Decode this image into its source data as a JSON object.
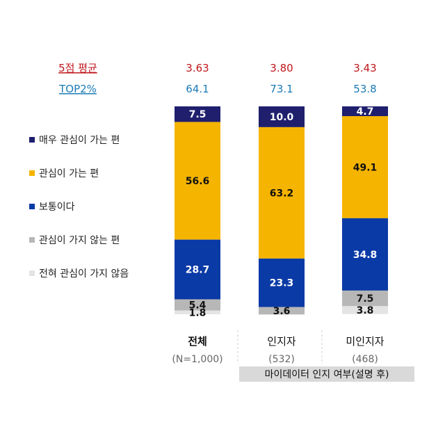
{
  "stats": {
    "avg_label": "5점 평균",
    "top2_label": "TOP2%",
    "avg_values": [
      "3.63",
      "3.80",
      "3.43"
    ],
    "top2_values": [
      "64.1",
      "73.1",
      "53.8"
    ]
  },
  "chart_data": {
    "type": "bar",
    "stacked": true,
    "ylim": [
      0,
      100
    ],
    "grid": false,
    "legend_position": "left",
    "categories": [
      "전체",
      "인지자",
      "미인지자"
    ],
    "category_counts": [
      "(N=1,000)",
      "(532)",
      "(468)"
    ],
    "group_label": "마이데이터 인지 여부(설명 후)",
    "series": [
      {
        "name": "매우 관심이 가는 편",
        "color": "#1f1f6e",
        "label_color": "#ffffff",
        "values": [
          7.5,
          10.0,
          4.7
        ],
        "labels": [
          "7.5",
          "10.0",
          "4.7"
        ]
      },
      {
        "name": "관심이 가는 편",
        "color": "#f5b400",
        "label_color": "#111111",
        "values": [
          56.6,
          63.2,
          49.1
        ],
        "labels": [
          "56.6",
          "63.2",
          "49.1"
        ]
      },
      {
        "name": "보통이다",
        "color": "#0a3aa6",
        "label_color": "#ffffff",
        "values": [
          28.7,
          23.3,
          34.8
        ],
        "labels": [
          "28.7",
          "23.3",
          "34.8"
        ]
      },
      {
        "name": "관심이 가지 않는 편",
        "color": "#b7b7b7",
        "label_color": "#111111",
        "values": [
          5.4,
          3.6,
          7.5
        ],
        "labels": [
          "5.4",
          "3.6",
          "7.5"
        ]
      },
      {
        "name": "전혀 관심이 가지 않음",
        "color": "#e4e4e4",
        "label_color": "#111111",
        "values": [
          1.8,
          0.0,
          3.8
        ],
        "labels": [
          "1.8",
          "",
          "3.8"
        ]
      }
    ]
  },
  "colors": {
    "avg": "#c0161b",
    "top2": "#1a7ab5",
    "group_band": "#d9d9d9"
  }
}
